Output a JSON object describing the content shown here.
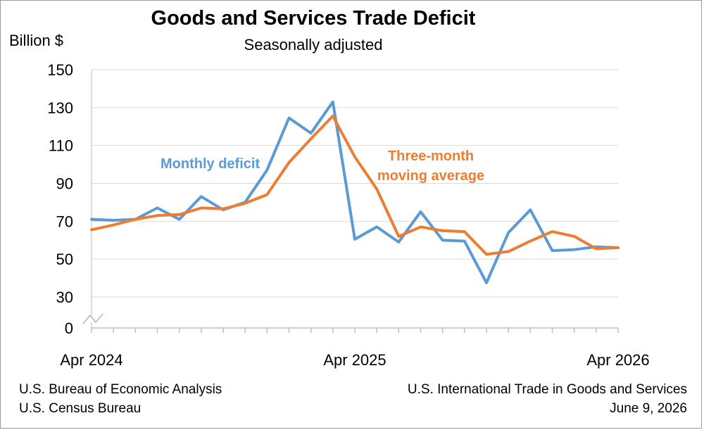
{
  "header": {
    "title": "Goods and Services Trade Deficit",
    "subtitle": "Seasonally adjusted",
    "ylabel": "Billion $"
  },
  "footer": {
    "source_1": "U.S. Bureau of Economic Analysis",
    "source_2": "U.S. Census Bureau",
    "release": "U.S. International Trade in Goods and Services",
    "date": "June 9, 2026"
  },
  "chart_data": {
    "type": "line",
    "title": "Goods and Services Trade Deficit",
    "subtitle": "Seasonally adjusted",
    "ylabel": "Billion $",
    "xlabel": "",
    "x": [
      "Apr 2024",
      "May 2024",
      "Jun 2024",
      "Jul 2024",
      "Aug 2024",
      "Sep 2024",
      "Oct 2024",
      "Nov 2024",
      "Dec 2024",
      "Jan 2025",
      "Feb 2025",
      "Mar 2025",
      "Apr 2025",
      "May 2025",
      "Jun 2025",
      "Jul 2025",
      "Aug 2025",
      "Sep 2025",
      "Oct 2025",
      "Nov 2025",
      "Dec 2025",
      "Jan 2026",
      "Feb 2026",
      "Mar 2026",
      "Apr 2026"
    ],
    "x_tick_labels": [
      "Apr 2024",
      "Apr 2025",
      "Apr 2026"
    ],
    "y_ticks": [
      0,
      30,
      50,
      70,
      90,
      110,
      130,
      150
    ],
    "ylim": [
      0,
      150
    ],
    "axis_break": true,
    "grid": "horizontal",
    "series": [
      {
        "name": "Monthly deficit",
        "color": "#5b9bd5",
        "values": [
          71,
          70.5,
          71,
          77,
          71,
          83,
          76,
          80,
          97,
          124.5,
          116.5,
          133,
          60.5,
          67,
          59,
          75,
          60,
          59.5,
          37.5,
          64,
          76,
          54.5,
          55,
          56.5,
          56
        ]
      },
      {
        "name": "Three-month moving average",
        "color": "#ed7d31",
        "values": [
          65.5,
          68,
          71,
          73,
          73.5,
          77,
          76.5,
          79.5,
          84,
          101,
          113.5,
          125.5,
          104,
          87,
          62,
          67,
          65,
          64.5,
          52.5,
          54,
          59.5,
          64.5,
          62,
          55.5,
          56
        ]
      }
    ],
    "annotations": [
      {
        "text": "Monthly deficit",
        "series": "Monthly deficit"
      },
      {
        "text": [
          "Three-month",
          "moving average"
        ],
        "series": "Three-month moving average"
      }
    ]
  }
}
